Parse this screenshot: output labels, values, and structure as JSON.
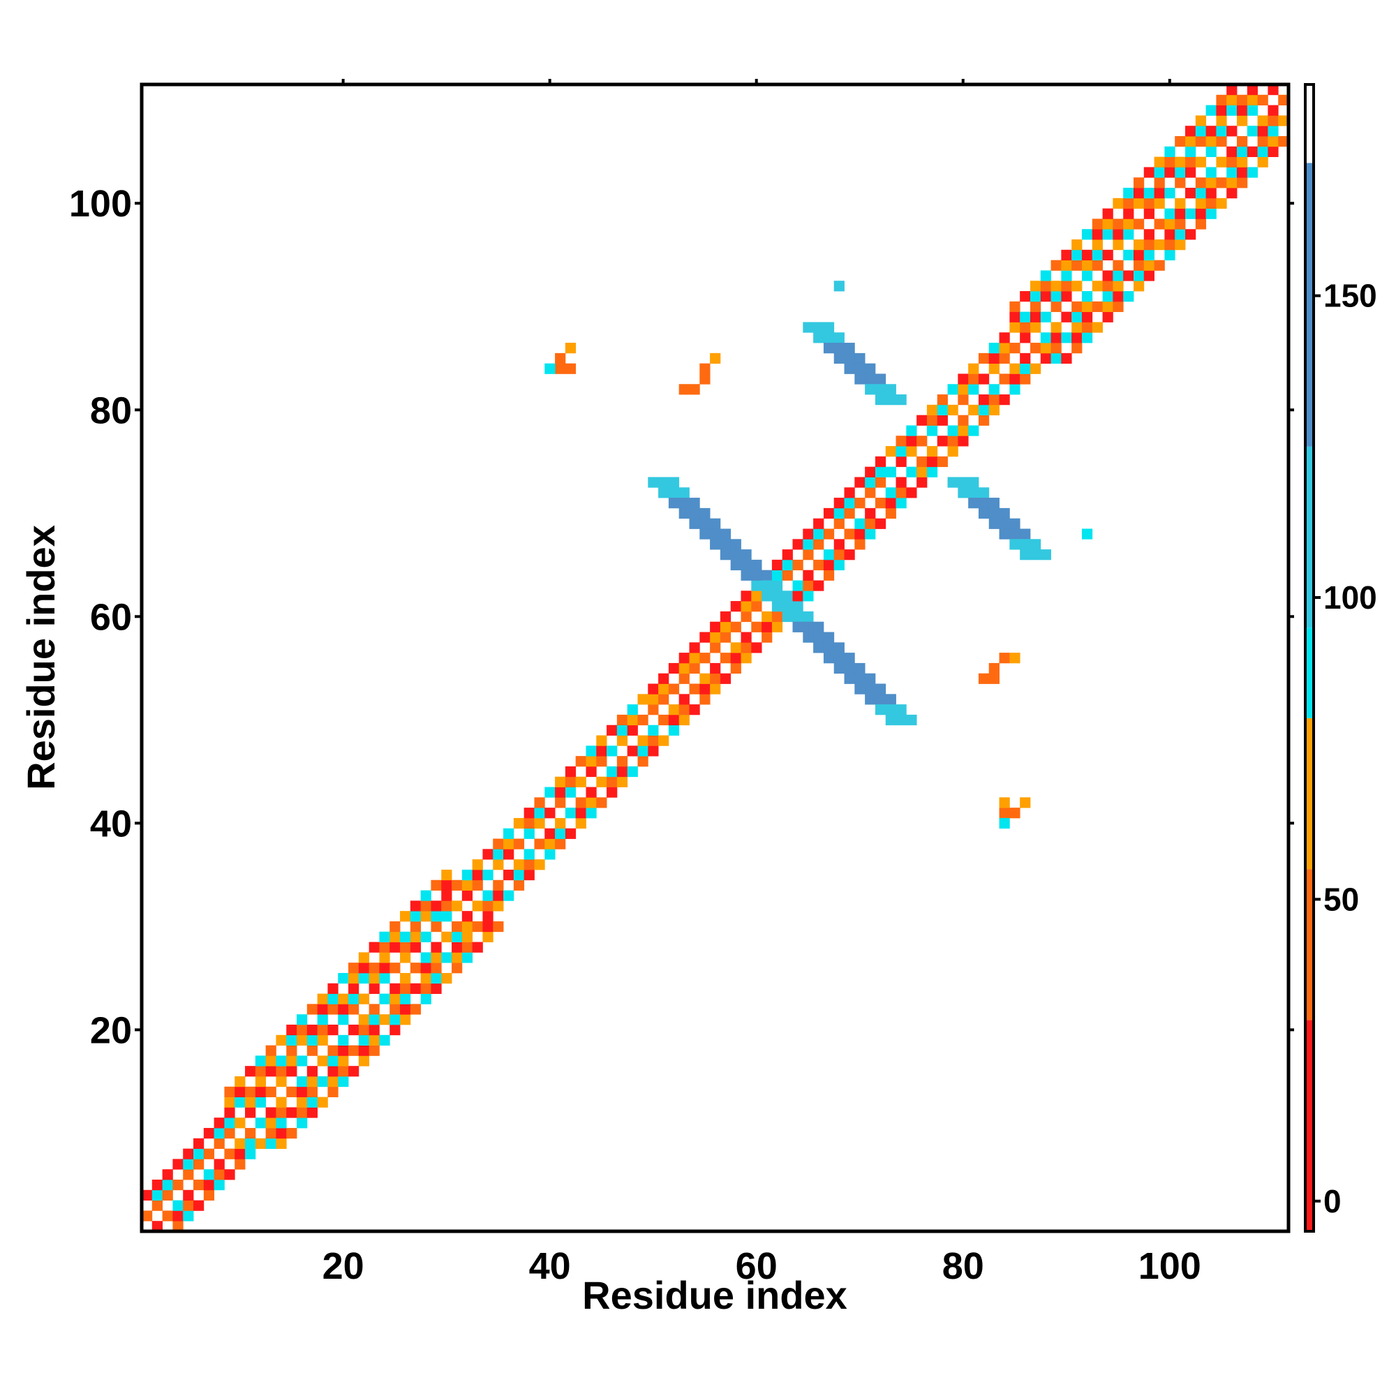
{
  "chart_data": {
    "type": "heatmap",
    "title": "",
    "xlabel": "Residue index",
    "ylabel": "Residue index",
    "xlim": [
      1,
      111
    ],
    "ylim": [
      1,
      111
    ],
    "x_ticks": [
      20,
      40,
      60,
      80,
      100
    ],
    "y_ticks": [
      20,
      40,
      60,
      80,
      100
    ],
    "x_tick_labels": [
      "20",
      "40",
      "60",
      "80",
      "100"
    ],
    "y_tick_labels": [
      "20",
      "40",
      "60",
      "80",
      "100"
    ],
    "grid": false,
    "colorbar": {
      "ticks": [
        0,
        50,
        100,
        150
      ],
      "tick_labels": [
        "0",
        "50",
        "100",
        "150"
      ],
      "range": [
        -5,
        185
      ],
      "stops": [
        {
          "from": -5,
          "to": 30,
          "color": "#ff1a1a"
        },
        {
          "from": 30,
          "to": 55,
          "color": "#ff6a10"
        },
        {
          "from": 55,
          "to": 80,
          "color": "#ffa000"
        },
        {
          "from": 80,
          "to": 95,
          "color": "#00e5f0"
        },
        {
          "from": 95,
          "to": 125,
          "color": "#33c8e0"
        },
        {
          "from": 125,
          "to": 172,
          "color": "#4f8ec8"
        },
        {
          "from": 172,
          "to": 185,
          "color": "#ffffff"
        }
      ]
    },
    "colors": {
      "red": "#ff1a1a",
      "orange_red": "#ff6a10",
      "orange": "#ffa000",
      "cyan": "#00e5f0",
      "sky": "#33c8e0",
      "steel_blue": "#4f8ec8"
    },
    "diagonal_band": {
      "description_values": "cells near diagonal, checkerboard with mixed values",
      "segments": [
        {
          "from": 1,
          "to": 9,
          "halfwidth": 3,
          "values": [
            20,
            45,
            90
          ]
        },
        {
          "from": 9,
          "to": 30,
          "halfwidth": 5,
          "values": [
            45,
            90,
            20,
            70
          ]
        },
        {
          "from": 30,
          "to": 50,
          "halfwidth": 3,
          "values": [
            45,
            20,
            70,
            90
          ]
        },
        {
          "from": 50,
          "to": 61,
          "halfwidth": 3,
          "values": [
            20,
            45,
            70
          ]
        },
        {
          "from": 61,
          "to": 73,
          "halfwidth": 3,
          "values": [
            20,
            45,
            90
          ]
        },
        {
          "from": 73,
          "to": 85,
          "halfwidth": 3,
          "values": [
            90,
            45,
            70,
            20
          ]
        },
        {
          "from": 85,
          "to": 111,
          "halfwidth": 5,
          "values": [
            45,
            90,
            70,
            20
          ]
        }
      ]
    },
    "antidiagonal_strips": [
      {
        "x_start": 50,
        "y_start": 73,
        "x_end": 61,
        "y_end": 62,
        "width": 3,
        "value": 140,
        "end_value": 100
      },
      {
        "x_start": 62,
        "y_start": 61,
        "x_end": 73,
        "y_end": 50,
        "width": 3,
        "value": 140,
        "end_value": 100
      },
      {
        "x_start": 65,
        "y_start": 88,
        "x_end": 72,
        "y_end": 79,
        "width": 3,
        "value": 140,
        "end_value": 100
      },
      {
        "x_start": 79,
        "y_start": 73,
        "x_end": 86,
        "y_end": 65,
        "width": 3,
        "value": 140,
        "end_value": 100
      }
    ],
    "scattered_cells": [
      {
        "x": 41,
        "y": 84,
        "value": 45
      },
      {
        "x": 42,
        "y": 84,
        "value": 45
      },
      {
        "x": 41,
        "y": 85,
        "value": 45
      },
      {
        "x": 42,
        "y": 86,
        "value": 70
      },
      {
        "x": 40,
        "y": 84,
        "value": 90
      },
      {
        "x": 53,
        "y": 82,
        "value": 45
      },
      {
        "x": 54,
        "y": 82,
        "value": 45
      },
      {
        "x": 55,
        "y": 83,
        "value": 45
      },
      {
        "x": 55,
        "y": 84,
        "value": 45
      },
      {
        "x": 56,
        "y": 85,
        "value": 70
      },
      {
        "x": 68,
        "y": 92,
        "value": 110
      },
      {
        "x": 92,
        "y": 68,
        "value": 90
      },
      {
        "x": 82,
        "y": 54,
        "value": 45
      },
      {
        "x": 83,
        "y": 54,
        "value": 45
      },
      {
        "x": 83,
        "y": 55,
        "value": 45
      },
      {
        "x": 84,
        "y": 56,
        "value": 45
      },
      {
        "x": 85,
        "y": 56,
        "value": 70
      },
      {
        "x": 84,
        "y": 41,
        "value": 45
      },
      {
        "x": 85,
        "y": 41,
        "value": 45
      },
      {
        "x": 84,
        "y": 42,
        "value": 70
      },
      {
        "x": 86,
        "y": 42,
        "value": 70
      },
      {
        "x": 84,
        "y": 40,
        "value": 90
      }
    ]
  }
}
